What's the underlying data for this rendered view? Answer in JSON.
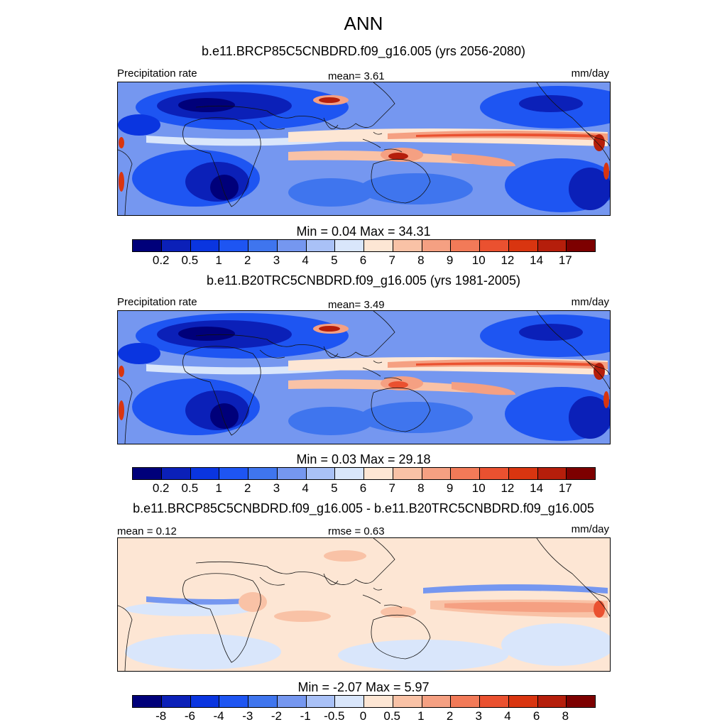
{
  "title": "ANN",
  "panels": [
    {
      "subtitle": "b.e11.BRCP85C5CNBDRD.f09_g16.005 (yrs 2056-2080)",
      "left_label": "Precipitation rate",
      "center_label": "mean=   3.61",
      "right_label": "mm/day",
      "stats": "Min =   0.04 Max =  34.31",
      "kind": "abs",
      "extra_mean": 0
    },
    {
      "subtitle": "b.e11.B20TRC5CNBDRD.f09_g16.005 (yrs 1981-2005)",
      "left_label": "Precipitation rate",
      "center_label": "mean=   3.49",
      "right_label": "mm/day",
      "stats": "Min =   0.03 Max =  29.18",
      "kind": "abs",
      "extra_mean": 0
    },
    {
      "subtitle": "b.e11.BRCP85C5CNBDRD.f09_g16.005 - b.e11.B20TRC5CNBDRD.f09_g16.005",
      "left_label": "mean =   0.12",
      "center_label": "rmse =   0.63",
      "right_label": "mm/day",
      "stats": "Min =  -2.07 Max =   5.97",
      "kind": "diff"
    }
  ],
  "colorbars": {
    "abs": {
      "colors": [
        "#00007a",
        "#0b20b8",
        "#0a35e0",
        "#1e55f2",
        "#3f75ee",
        "#7597f0",
        "#a9c1f7",
        "#d9e6fb",
        "#fde6d4",
        "#f9c2a6",
        "#f5a082",
        "#f27a58",
        "#ea5130",
        "#d93510",
        "#b51e0b",
        "#7d0000"
      ],
      "ticks": [
        "0.2",
        "0.5",
        "1",
        "2",
        "3",
        "4",
        "5",
        "6",
        "7",
        "8",
        "9",
        "10",
        "12",
        "14",
        "17"
      ]
    },
    "diff": {
      "colors": [
        "#00007a",
        "#0b20b8",
        "#0a35e0",
        "#1e55f2",
        "#3f75ee",
        "#7597f0",
        "#a9c1f7",
        "#d9e6fb",
        "#fde6d4",
        "#f9c2a6",
        "#f5a082",
        "#f27a58",
        "#ea5130",
        "#d93510",
        "#b51e0b",
        "#7d0000"
      ],
      "ticks": [
        "-8",
        "-6",
        "-4",
        "-3",
        "-2",
        "-1",
        "-0.5",
        "0",
        "0.5",
        "1",
        "2",
        "3",
        "4",
        "6",
        "8"
      ]
    }
  }
}
